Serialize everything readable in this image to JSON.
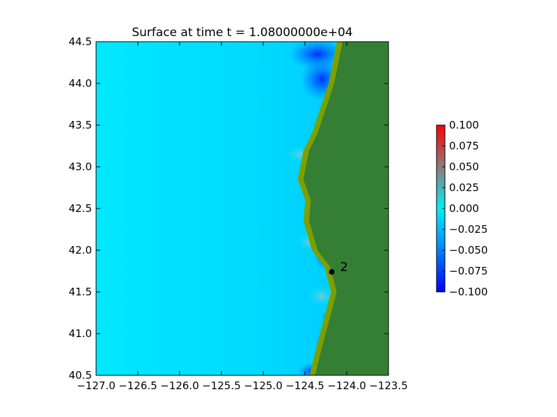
{
  "chart_data": {
    "type": "heatmap",
    "title": "Surface at time t = 1.08000000e+04",
    "xlabel": "",
    "ylabel": "",
    "xlim": [
      -127.0,
      -123.5
    ],
    "ylim": [
      40.5,
      44.5
    ],
    "xticks": [
      -127.0,
      -126.5,
      -126.0,
      -125.5,
      -125.0,
      -124.5,
      -124.0,
      -123.5
    ],
    "xtick_labels": [
      "−127.0",
      "−126.5",
      "−126.0",
      "−125.5",
      "−125.0",
      "−124.5",
      "−124.0",
      "−123.5"
    ],
    "yticks": [
      40.5,
      41.0,
      41.5,
      42.0,
      42.5,
      43.0,
      43.5,
      44.0,
      44.5
    ],
    "ytick_labels": [
      "40.5",
      "41.0",
      "41.5",
      "42.0",
      "42.5",
      "43.0",
      "43.5",
      "44.0",
      "44.5"
    ],
    "colorbar": {
      "range": [
        -0.1,
        0.1
      ],
      "ticks": [
        0.1,
        0.075,
        0.05,
        0.025,
        0.0,
        -0.025,
        -0.05,
        -0.075,
        -0.1
      ],
      "tick_labels": [
        "0.100",
        "0.075",
        "0.050",
        "0.025",
        "0.000",
        "−0.025",
        "−0.050",
        "−0.075",
        "−0.100"
      ],
      "colors": {
        "min": "#0000ff",
        "low": "#0090ff",
        "zero": "#00f0f0",
        "mid_high": "#8c7c7c",
        "max": "#ff0000"
      }
    },
    "field": {
      "background_value": -0.01,
      "ocean_color": "#00d4ff",
      "land_color": "#357f35",
      "shore_color": "#7da000"
    },
    "coastline": [
      [
        -124.05,
        44.5
      ],
      [
        -124.1,
        44.25
      ],
      [
        -124.15,
        44.0
      ],
      [
        -124.25,
        43.7
      ],
      [
        -124.35,
        43.4
      ],
      [
        -124.45,
        43.2
      ],
      [
        -124.52,
        42.85
      ],
      [
        -124.43,
        42.6
      ],
      [
        -124.45,
        42.35
      ],
      [
        -124.35,
        42.0
      ],
      [
        -124.2,
        41.8
      ],
      [
        -124.12,
        41.5
      ],
      [
        -124.2,
        41.2
      ],
      [
        -124.28,
        40.9
      ],
      [
        -124.38,
        40.5
      ]
    ],
    "gauges": [
      {
        "label": "2",
        "x": -124.18,
        "y": 41.74
      }
    ]
  }
}
